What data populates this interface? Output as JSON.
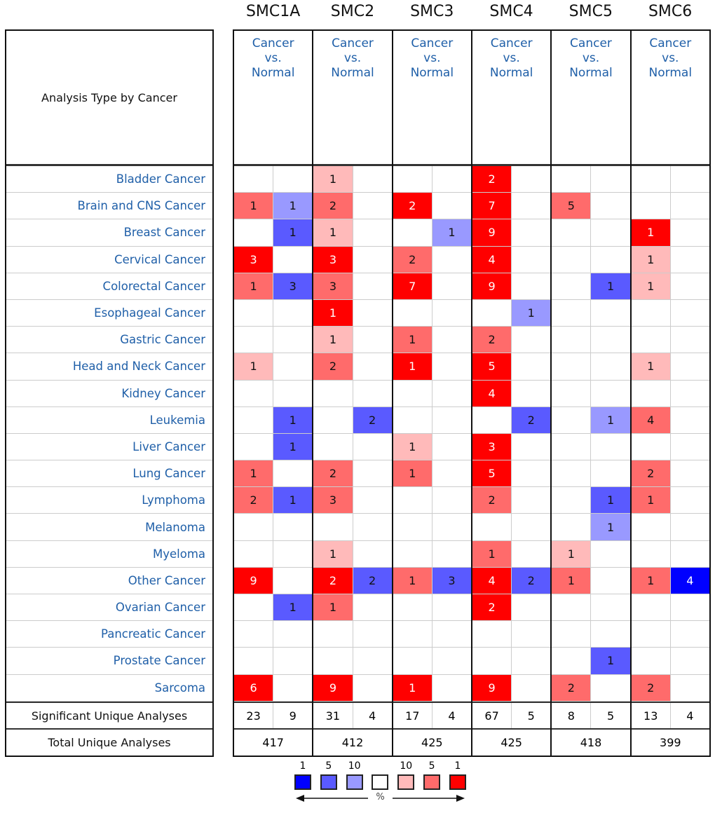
{
  "chart_data": {
    "type": "heatmap",
    "title": "Analysis Type by Cancer",
    "genes": [
      "SMC1A",
      "SMC2",
      "SMC3",
      "SMC4",
      "SMC5",
      "SMC6"
    ],
    "analysis_label": [
      "Cancer",
      "vs.",
      "Normal"
    ],
    "columns_per_gene": [
      "over-expression",
      "under-expression"
    ],
    "colors": {
      "R1": "#ff0000",
      "R5": "#ff6b6b",
      "R10": "#ffbaba",
      "B1": "#0000ff",
      "B5": "#5a5aff",
      "B10": "#9999ff",
      "none": "#ffffff"
    },
    "rows": [
      {
        "cancer": "Bladder Cancer",
        "cells": [
          null,
          null,
          "1R10",
          null,
          null,
          null,
          "2R1",
          null,
          null,
          null,
          null,
          null
        ]
      },
      {
        "cancer": "Brain and CNS Cancer",
        "cells": [
          "1R5",
          "1B10",
          "2R5",
          null,
          "2R1",
          null,
          "7R1",
          null,
          "5R5",
          null,
          null,
          null
        ]
      },
      {
        "cancer": "Breast Cancer",
        "cells": [
          null,
          "1B5",
          "1R10",
          null,
          null,
          "1B10",
          "9R1",
          null,
          null,
          null,
          "1R1",
          null
        ]
      },
      {
        "cancer": "Cervical Cancer",
        "cells": [
          "3R1",
          null,
          "3R1",
          null,
          "2R5",
          null,
          "4R1",
          null,
          null,
          null,
          "1R10",
          null
        ]
      },
      {
        "cancer": "Colorectal Cancer",
        "cells": [
          "1R5",
          "3B5",
          "3R5",
          null,
          "7R1",
          null,
          "9R1",
          null,
          null,
          "1B5",
          "1R10",
          null
        ]
      },
      {
        "cancer": "Esophageal Cancer",
        "cells": [
          null,
          null,
          "1R1",
          null,
          null,
          null,
          null,
          "1B10",
          null,
          null,
          null,
          null
        ]
      },
      {
        "cancer": "Gastric Cancer",
        "cells": [
          null,
          null,
          "1R10",
          null,
          "1R5",
          null,
          "2R5",
          null,
          null,
          null,
          null,
          null
        ]
      },
      {
        "cancer": "Head and Neck Cancer",
        "cells": [
          "1R10",
          null,
          "2R5",
          null,
          "1R1",
          null,
          "5R1",
          null,
          null,
          null,
          "1R10",
          null
        ]
      },
      {
        "cancer": "Kidney Cancer",
        "cells": [
          null,
          null,
          null,
          null,
          null,
          null,
          "4R1",
          null,
          null,
          null,
          null,
          null
        ]
      },
      {
        "cancer": "Leukemia",
        "cells": [
          null,
          "1B5",
          null,
          "2B5",
          null,
          null,
          null,
          "2B5",
          null,
          "1B10",
          "4R5",
          null
        ]
      },
      {
        "cancer": "Liver Cancer",
        "cells": [
          null,
          "1B5",
          null,
          null,
          "1R10",
          null,
          "3R1",
          null,
          null,
          null,
          null,
          null
        ]
      },
      {
        "cancer": "Lung Cancer",
        "cells": [
          "1R5",
          null,
          "2R5",
          null,
          "1R5",
          null,
          "5R1",
          null,
          null,
          null,
          "2R5",
          null
        ]
      },
      {
        "cancer": "Lymphoma",
        "cells": [
          "2R5",
          "1B5",
          "3R5",
          null,
          null,
          null,
          "2R5",
          null,
          null,
          "1B5",
          "1R5",
          null
        ]
      },
      {
        "cancer": "Melanoma",
        "cells": [
          null,
          null,
          null,
          null,
          null,
          null,
          null,
          null,
          null,
          "1B10",
          null,
          null
        ]
      },
      {
        "cancer": "Myeloma",
        "cells": [
          null,
          null,
          "1R10",
          null,
          null,
          null,
          "1R5",
          null,
          "1R10",
          null,
          null,
          null
        ]
      },
      {
        "cancer": "Other Cancer",
        "cells": [
          "9R1",
          null,
          "2R1",
          "2B5",
          "1R5",
          "3B5",
          "4R1",
          "2B5",
          "1R5",
          null,
          "1R5",
          "4B1"
        ]
      },
      {
        "cancer": "Ovarian Cancer",
        "cells": [
          null,
          "1B5",
          "1R5",
          null,
          null,
          null,
          "2R1",
          null,
          null,
          null,
          null,
          null
        ]
      },
      {
        "cancer": "Pancreatic Cancer",
        "cells": [
          null,
          null,
          null,
          null,
          null,
          null,
          null,
          null,
          null,
          null,
          null,
          null
        ]
      },
      {
        "cancer": "Prostate Cancer",
        "cells": [
          null,
          null,
          null,
          null,
          null,
          null,
          null,
          null,
          null,
          "1B5",
          null,
          null
        ]
      },
      {
        "cancer": "Sarcoma",
        "cells": [
          "6R1",
          null,
          "9R1",
          null,
          "1R1",
          null,
          "9R1",
          null,
          "2R5",
          null,
          "2R5",
          null
        ]
      }
    ],
    "significant_label": "Significant Unique Analyses",
    "significant": [
      23,
      9,
      31,
      4,
      17,
      4,
      67,
      5,
      8,
      5,
      13,
      4
    ],
    "total_label": "Total Unique Analyses",
    "total": [
      417,
      412,
      425,
      425,
      418,
      399
    ],
    "legend": {
      "labels": [
        "1",
        "5",
        "10",
        "",
        "10",
        "5",
        "1"
      ],
      "levels": [
        "B1",
        "B5",
        "B10",
        "none",
        "R10",
        "R5",
        "R1"
      ],
      "unit": "%"
    }
  }
}
